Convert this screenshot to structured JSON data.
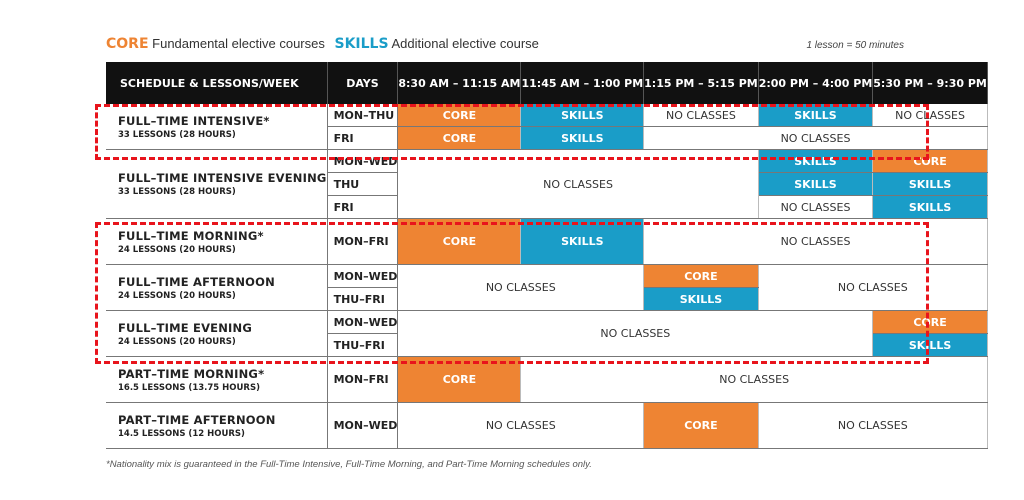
{
  "legend": {
    "core_key": "CORE",
    "core_desc": "Fundamental elective courses",
    "skills_key": "SKILLS",
    "skills_desc": "Additional elective course",
    "note": "1 lesson = 50 minutes"
  },
  "header": {
    "schedule": "SCHEDULE & LESSONS/WEEK",
    "days": "DAYS",
    "slots": [
      "8:30 AM – 11:15 AM",
      "11:45 AM – 1:00 PM",
      "1:15 PM – 5:15 PM",
      "2:00 PM – 4:00 PM",
      "5:30 PM – 9:30 PM"
    ]
  },
  "labels": {
    "core": "CORE",
    "skills": "SKILLS",
    "no_classes": "NO CLASSES"
  },
  "programs": [
    {
      "name": "FULL–TIME INTENSIVE*",
      "hours": "33 LESSONS (28 HOURS)",
      "days": [
        "MON–THU",
        "FRI"
      ]
    },
    {
      "name": "FULL–TIME INTENSIVE EVENING",
      "hours": "33 LESSONS (28 HOURS)",
      "days": [
        "MON–WED",
        "THU",
        "FRI"
      ]
    },
    {
      "name": "FULL–TIME MORNING*",
      "hours": "24 LESSONS (20 HOURS)",
      "days": [
        "MON–FRI"
      ]
    },
    {
      "name": "FULL–TIME AFTERNOON",
      "hours": "24 LESSONS (20 HOURS)",
      "days": [
        "MON–WED",
        "THU–FRI"
      ]
    },
    {
      "name": "FULL–TIME EVENING",
      "hours": "24 LESSONS (20 HOURS)",
      "days": [
        "MON–WED",
        "THU–FRI"
      ]
    },
    {
      "name": "PART–TIME MORNING*",
      "hours": "16.5 LESSONS (13.75 HOURS)",
      "days": [
        "MON–FRI"
      ]
    },
    {
      "name": "PART–TIME AFTERNOON",
      "hours": "14.5 LESSONS (12 HOURS)",
      "days": [
        "MON–WED"
      ]
    }
  ],
  "footer": "*Nationality mix is guaranteed in the Full-Time Intensive, Full-Time Morning, and Part-Time Morning schedules only.",
  "colors": {
    "core": "#ee8433",
    "skills": "#1a9dc8",
    "highlight": "#e8141c",
    "header_bg": "#111111"
  }
}
